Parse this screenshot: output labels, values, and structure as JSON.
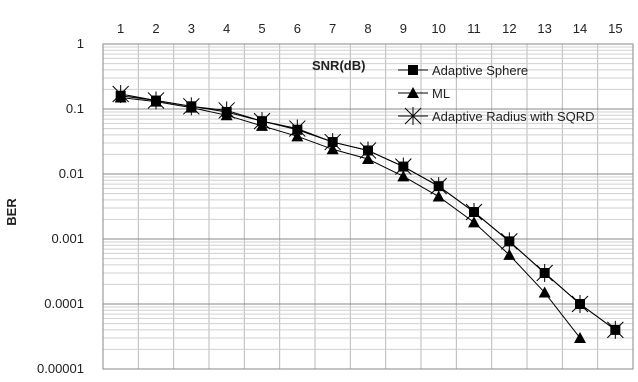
{
  "chart_data": {
    "type": "line",
    "title": "",
    "xlabel": "SNR(dB)",
    "ylabel": "BER",
    "x_ticks": [
      1,
      2,
      3,
      4,
      5,
      6,
      7,
      8,
      9,
      10,
      11,
      12,
      13,
      14,
      15
    ],
    "y_scale": "log",
    "y_ticks": [
      "1",
      "0.1",
      "0.01",
      "0.001",
      "0.0001",
      "0.00001"
    ],
    "y_tick_values": [
      1,
      0.1,
      0.01,
      0.001,
      0.0001,
      1e-05
    ],
    "ylim": [
      1e-05,
      1
    ],
    "xlim": [
      0.5,
      15.5
    ],
    "x_axis_position": "top",
    "grid": true,
    "legend_position": "top-right",
    "series": [
      {
        "name": "Adaptive Sphere",
        "marker": "square",
        "x": [
          1,
          2,
          3,
          4,
          5,
          6,
          7,
          8,
          9,
          10,
          11,
          12,
          13,
          14,
          15
        ],
        "y": [
          0.16,
          0.135,
          0.11,
          0.09,
          0.065,
          0.048,
          0.031,
          0.023,
          0.013,
          0.0065,
          0.0026,
          0.00092,
          0.0003,
          0.0001,
          4e-05
        ]
      },
      {
        "name": "ML",
        "marker": "triangle",
        "x": [
          1,
          2,
          3,
          4,
          5,
          6,
          7,
          8,
          9,
          10,
          11,
          12,
          13,
          14
        ],
        "y": [
          0.15,
          0.13,
          0.105,
          0.08,
          0.055,
          0.038,
          0.024,
          0.017,
          0.0092,
          0.0045,
          0.0018,
          0.00057,
          0.00015,
          3e-05
        ]
      },
      {
        "name": "Adaptive Radius with SQRD",
        "marker": "asterisk",
        "x": [
          1,
          2,
          3,
          4,
          5,
          6,
          7,
          8,
          9,
          10,
          11,
          12,
          13,
          14,
          15
        ],
        "y": [
          0.17,
          0.135,
          0.11,
          0.095,
          0.065,
          0.05,
          0.031,
          0.023,
          0.013,
          0.0065,
          0.0026,
          0.00092,
          0.0003,
          0.0001,
          4e-05
        ]
      }
    ]
  }
}
